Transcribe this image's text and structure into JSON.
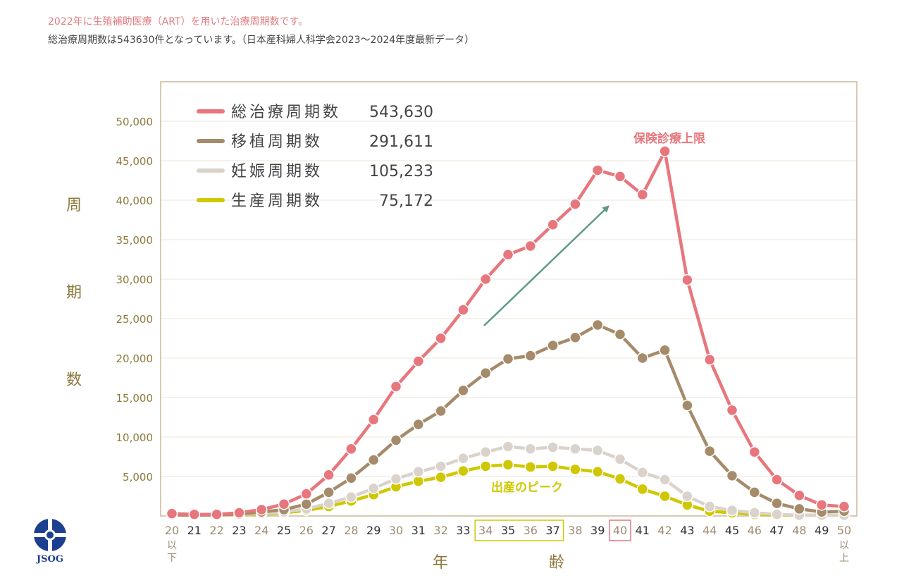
{
  "header": {
    "line1": "2022年に生殖補助医療（ART）を用いた治療周期数です。",
    "line2": "総治療周期数は543630件となっています。（日本産科婦人科学会2023～2024年度最新データ）"
  },
  "logo": {
    "text": "JSOG"
  },
  "chart_data": {
    "type": "line",
    "ylabel": "周期数",
    "xlabel": "年齢",
    "ylim": [
      0,
      55000
    ],
    "y_ticks": [
      "5,000",
      "10,000",
      "15,000",
      "20,000",
      "25,000",
      "30,000",
      "35,000",
      "40,000",
      "45,000",
      "50,000"
    ],
    "y_tick_values": [
      5000,
      10000,
      15000,
      20000,
      25000,
      30000,
      35000,
      40000,
      45000,
      50000
    ],
    "categories": [
      "20以下",
      "21",
      "22",
      "23",
      "24",
      "25",
      "26",
      "27",
      "28",
      "29",
      "30",
      "31",
      "32",
      "33",
      "34",
      "35",
      "36",
      "37",
      "38",
      "39",
      "40",
      "41",
      "42",
      "43",
      "44",
      "45",
      "46",
      "47",
      "48",
      "49",
      "50以上"
    ],
    "series": [
      {
        "name": "総治療周期数",
        "total": "543,630",
        "color": "#e8767d",
        "values": [
          300,
          200,
          200,
          400,
          800,
          1500,
          2800,
          5200,
          8500,
          12200,
          16400,
          19600,
          22500,
          26100,
          30000,
          33100,
          34200,
          36900,
          39500,
          43800,
          43000,
          40700,
          46200,
          29900,
          19800,
          13400,
          8100,
          4600,
          2600,
          1400,
          1200
        ]
      },
      {
        "name": "移植周期数",
        "total": "291,611",
        "color": "#a68b6b",
        "values": [
          150,
          100,
          150,
          250,
          500,
          800,
          1500,
          3000,
          4800,
          7100,
          9600,
          11600,
          13300,
          15900,
          18100,
          19900,
          20300,
          21600,
          22600,
          24200,
          23000,
          20000,
          21000,
          14000,
          8200,
          5100,
          3000,
          1600,
          900,
          500,
          600
        ]
      },
      {
        "name": "妊娠周期数",
        "total": "105,233",
        "color": "#d9d3cc",
        "values": [
          100,
          100,
          100,
          200,
          300,
          500,
          900,
          1600,
          2400,
          3500,
          4700,
          5600,
          6300,
          7300,
          8100,
          8800,
          8500,
          8700,
          8500,
          8300,
          7200,
          5500,
          4600,
          2500,
          1200,
          700,
          400,
          200,
          100,
          100,
          100
        ]
      },
      {
        "name": "生産周期数",
        "total": "75,172",
        "color": "#cfc800",
        "values": [
          100,
          100,
          100,
          150,
          200,
          400,
          700,
          1200,
          1900,
          2700,
          3700,
          4400,
          4900,
          5700,
          6300,
          6500,
          6200,
          6300,
          5900,
          5600,
          4700,
          3400,
          2500,
          1400,
          600,
          400,
          200,
          100,
          100,
          100,
          100
        ]
      }
    ],
    "annotations": {
      "insurance_limit": "保険診療上限",
      "birth_peak": "出産のピーク"
    },
    "highlight_peak_ages": [
      "34",
      "35",
      "36",
      "37"
    ],
    "highlight_limit_age": "40",
    "grid": true,
    "legend": "top-left"
  }
}
